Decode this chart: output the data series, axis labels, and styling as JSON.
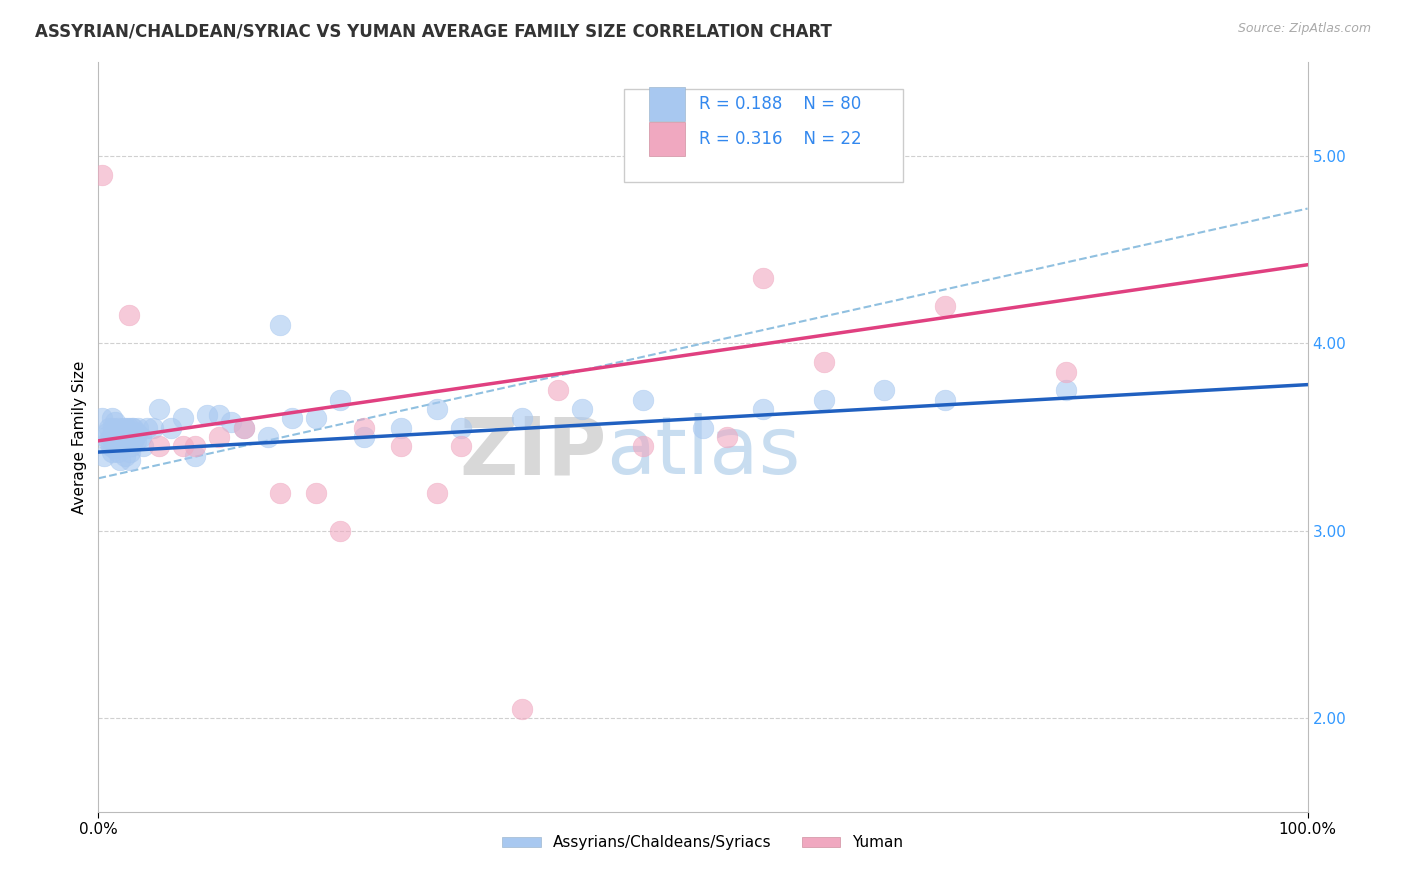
{
  "title": "ASSYRIAN/CHALDEAN/SYRIAC VS YUMAN AVERAGE FAMILY SIZE CORRELATION CHART",
  "source_text": "Source: ZipAtlas.com",
  "ylabel": "Average Family Size",
  "xlim": [
    0,
    100
  ],
  "ylim": [
    1.5,
    5.5
  ],
  "yticks_right": [
    2.0,
    3.0,
    4.0,
    5.0
  ],
  "blue_color": "#a8c8f0",
  "pink_color": "#f0a8c0",
  "blue_line_color": "#2060c0",
  "pink_line_color": "#e04080",
  "dashed_line_color": "#90c0e0",
  "watermark_zip": "ZIP",
  "watermark_atlas": "atlas",
  "blue_scatter_x": [
    0.3,
    0.5,
    0.6,
    0.7,
    0.8,
    0.9,
    1.0,
    1.0,
    1.1,
    1.1,
    1.2,
    1.2,
    1.3,
    1.3,
    1.4,
    1.4,
    1.5,
    1.5,
    1.6,
    1.6,
    1.7,
    1.7,
    1.8,
    1.8,
    1.9,
    1.9,
    2.0,
    2.0,
    2.1,
    2.1,
    2.2,
    2.2,
    2.3,
    2.3,
    2.4,
    2.4,
    2.5,
    2.5,
    2.6,
    2.6,
    2.7,
    2.7,
    2.8,
    2.8,
    2.9,
    2.9,
    3.0,
    3.1,
    3.2,
    3.3,
    3.5,
    3.7,
    4.0,
    4.5,
    5.0,
    6.0,
    7.0,
    8.0,
    9.0,
    10.0,
    11.0,
    12.0,
    14.0,
    15.0,
    16.0,
    18.0,
    20.0,
    22.0,
    25.0,
    28.0,
    30.0,
    35.0,
    40.0,
    45.0,
    50.0,
    55.0,
    60.0,
    65.0,
    70.0,
    80.0
  ],
  "blue_scatter_y": [
    3.6,
    3.4,
    3.5,
    3.52,
    3.48,
    3.55,
    3.5,
    3.45,
    3.6,
    3.42,
    3.55,
    3.48,
    3.52,
    3.44,
    3.58,
    3.46,
    3.5,
    3.53,
    3.42,
    3.55,
    3.48,
    3.5,
    3.52,
    3.38,
    3.45,
    3.5,
    3.53,
    3.48,
    3.5,
    3.55,
    3.4,
    3.48,
    3.52,
    3.55,
    3.48,
    3.5,
    3.52,
    3.55,
    3.38,
    3.42,
    3.45,
    3.5,
    3.55,
    3.52,
    3.48,
    3.55,
    3.5,
    3.48,
    3.52,
    3.55,
    3.5,
    3.45,
    3.55,
    3.55,
    3.65,
    3.55,
    3.6,
    3.4,
    3.62,
    3.62,
    3.58,
    3.55,
    3.5,
    4.1,
    3.6,
    3.6,
    3.7,
    3.5,
    3.55,
    3.65,
    3.55,
    3.6,
    3.65,
    3.7,
    3.55,
    3.65,
    3.7,
    3.75,
    3.7,
    3.75
  ],
  "pink_scatter_x": [
    0.3,
    2.5,
    5.0,
    7.0,
    8.0,
    10.0,
    12.0,
    15.0,
    18.0,
    20.0,
    22.0,
    25.0,
    28.0,
    30.0,
    35.0,
    38.0,
    45.0,
    52.0,
    55.0,
    60.0,
    70.0,
    80.0
  ],
  "pink_scatter_y": [
    4.9,
    4.15,
    3.45,
    3.45,
    3.45,
    3.5,
    3.55,
    3.2,
    3.2,
    3.0,
    3.55,
    3.45,
    3.2,
    3.45,
    2.05,
    3.75,
    3.45,
    3.5,
    4.35,
    3.9,
    4.2,
    3.85
  ],
  "blue_trendline": [
    3.42,
    3.78
  ],
  "pink_trendline": [
    3.48,
    4.42
  ],
  "dashed_trendline": [
    3.28,
    4.72
  ]
}
